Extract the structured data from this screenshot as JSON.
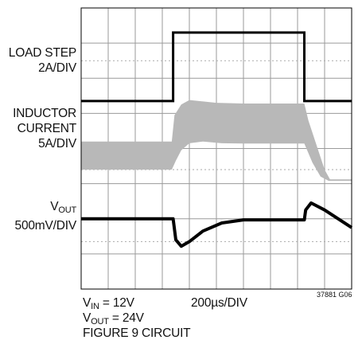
{
  "chart_data": {
    "type": "line",
    "title": "",
    "grid": true,
    "divisions": {
      "x": 10,
      "y": 8
    },
    "time_scale": "200µs/DIV",
    "traces": [
      {
        "name": "LOAD STEP",
        "scale": "2A/DIV",
        "points_div": [
          [
            0,
            2.65
          ],
          [
            3.4,
            2.65
          ],
          [
            3.4,
            0.7
          ],
          [
            8.25,
            0.7
          ],
          [
            8.25,
            2.65
          ],
          [
            10,
            2.65
          ]
        ]
      },
      {
        "name": "INDUCTOR CURRENT",
        "scale": "5A/DIV",
        "lower_div": [
          [
            0,
            4.6
          ],
          [
            3.35,
            4.6
          ],
          [
            3.5,
            4.35
          ],
          [
            3.7,
            4.05
          ],
          [
            4.0,
            3.85
          ],
          [
            4.5,
            3.8
          ],
          [
            5.2,
            3.85
          ],
          [
            6.0,
            3.86
          ],
          [
            8.25,
            3.86
          ],
          [
            8.55,
            4.4
          ],
          [
            8.85,
            4.8
          ],
          [
            9.15,
            4.92
          ],
          [
            10,
            4.92
          ]
        ],
        "upper_div": [
          [
            0,
            3.8
          ],
          [
            3.35,
            3.8
          ],
          [
            3.45,
            3.05
          ],
          [
            3.7,
            2.75
          ],
          [
            4.0,
            2.62
          ],
          [
            5.0,
            2.7
          ],
          [
            6.0,
            2.72
          ],
          [
            8.25,
            2.72
          ],
          [
            8.4,
            3.2
          ],
          [
            8.7,
            3.9
          ],
          [
            9.0,
            4.6
          ],
          [
            9.2,
            4.88
          ],
          [
            10,
            4.88
          ]
        ]
      },
      {
        "name": "VOUT",
        "scale": "500mV/DIV",
        "points_div": [
          [
            0,
            6.0
          ],
          [
            3.4,
            6.0
          ],
          [
            3.5,
            6.6
          ],
          [
            3.7,
            6.78
          ],
          [
            4.0,
            6.65
          ],
          [
            4.5,
            6.35
          ],
          [
            5.2,
            6.12
          ],
          [
            6.0,
            6.03
          ],
          [
            8.25,
            6.03
          ],
          [
            8.3,
            5.75
          ],
          [
            8.5,
            5.55
          ],
          [
            9.0,
            5.75
          ],
          [
            10,
            6.25
          ]
        ]
      }
    ]
  },
  "labels": {
    "load_step": "LOAD STEP",
    "load_step_scale": "2A/DIV",
    "inductor": "INDUCTOR",
    "current": "CURRENT",
    "inductor_scale": "5A/DIV",
    "vout_v": "V",
    "vout_sub": "OUT",
    "vout_scale": "500mV/DIV"
  },
  "footer": {
    "vin_v": "V",
    "vin_sub": "IN",
    "vin_value": " = 12V",
    "time_div": "200µs/DIV",
    "vout_v": "V",
    "vout_sub": "OUT",
    "vout_value": " = 24V",
    "circuit": "FIGURE 9 CIRCUIT",
    "code": "37881 G06"
  }
}
